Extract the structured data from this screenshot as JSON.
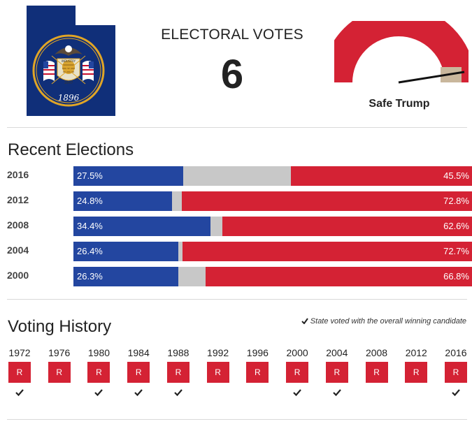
{
  "header": {
    "state_name": "Utah",
    "flag_year": "1896",
    "flag_motto": "INDUSTRY",
    "flag_date": "1847",
    "ev_label": "ELECTORAL VOTES",
    "ev_count": "6",
    "rating": "Safe Trump",
    "rating_level": 0.97
  },
  "colors": {
    "democrat": "#2346a0",
    "other": "#c8c8c8",
    "republican": "#d42234",
    "gauge_red": "#d42234",
    "gauge_tan": "#c9b79c",
    "flag_blue": "#102f79",
    "seal_gold": "#e0a526"
  },
  "recent_elections": {
    "title": "Recent Elections",
    "rows": [
      {
        "year": "2016",
        "dem": 27.5,
        "rep": 45.5,
        "dem_label": "27.5%",
        "rep_label": "45.5%"
      },
      {
        "year": "2012",
        "dem": 24.8,
        "rep": 72.8,
        "dem_label": "24.8%",
        "rep_label": "72.8%"
      },
      {
        "year": "2008",
        "dem": 34.4,
        "rep": 62.6,
        "dem_label": "34.4%",
        "rep_label": "62.6%"
      },
      {
        "year": "2004",
        "dem": 26.4,
        "rep": 72.7,
        "dem_label": "26.4%",
        "rep_label": "72.7%"
      },
      {
        "year": "2000",
        "dem": 26.3,
        "rep": 66.8,
        "dem_label": "26.3%",
        "rep_label": "66.8%"
      }
    ]
  },
  "voting_history": {
    "title": "Voting History",
    "legend": "State voted with the overall winning candidate",
    "items": [
      {
        "year": "1972",
        "party": "R",
        "winner": true
      },
      {
        "year": "1976",
        "party": "R",
        "winner": false
      },
      {
        "year": "1980",
        "party": "R",
        "winner": true
      },
      {
        "year": "1984",
        "party": "R",
        "winner": true
      },
      {
        "year": "1988",
        "party": "R",
        "winner": true
      },
      {
        "year": "1992",
        "party": "R",
        "winner": false
      },
      {
        "year": "1996",
        "party": "R",
        "winner": false
      },
      {
        "year": "2000",
        "party": "R",
        "winner": true
      },
      {
        "year": "2004",
        "party": "R",
        "winner": true
      },
      {
        "year": "2008",
        "party": "R",
        "winner": false
      },
      {
        "year": "2012",
        "party": "R",
        "winner": false
      },
      {
        "year": "2016",
        "party": "R",
        "winner": true
      }
    ]
  }
}
